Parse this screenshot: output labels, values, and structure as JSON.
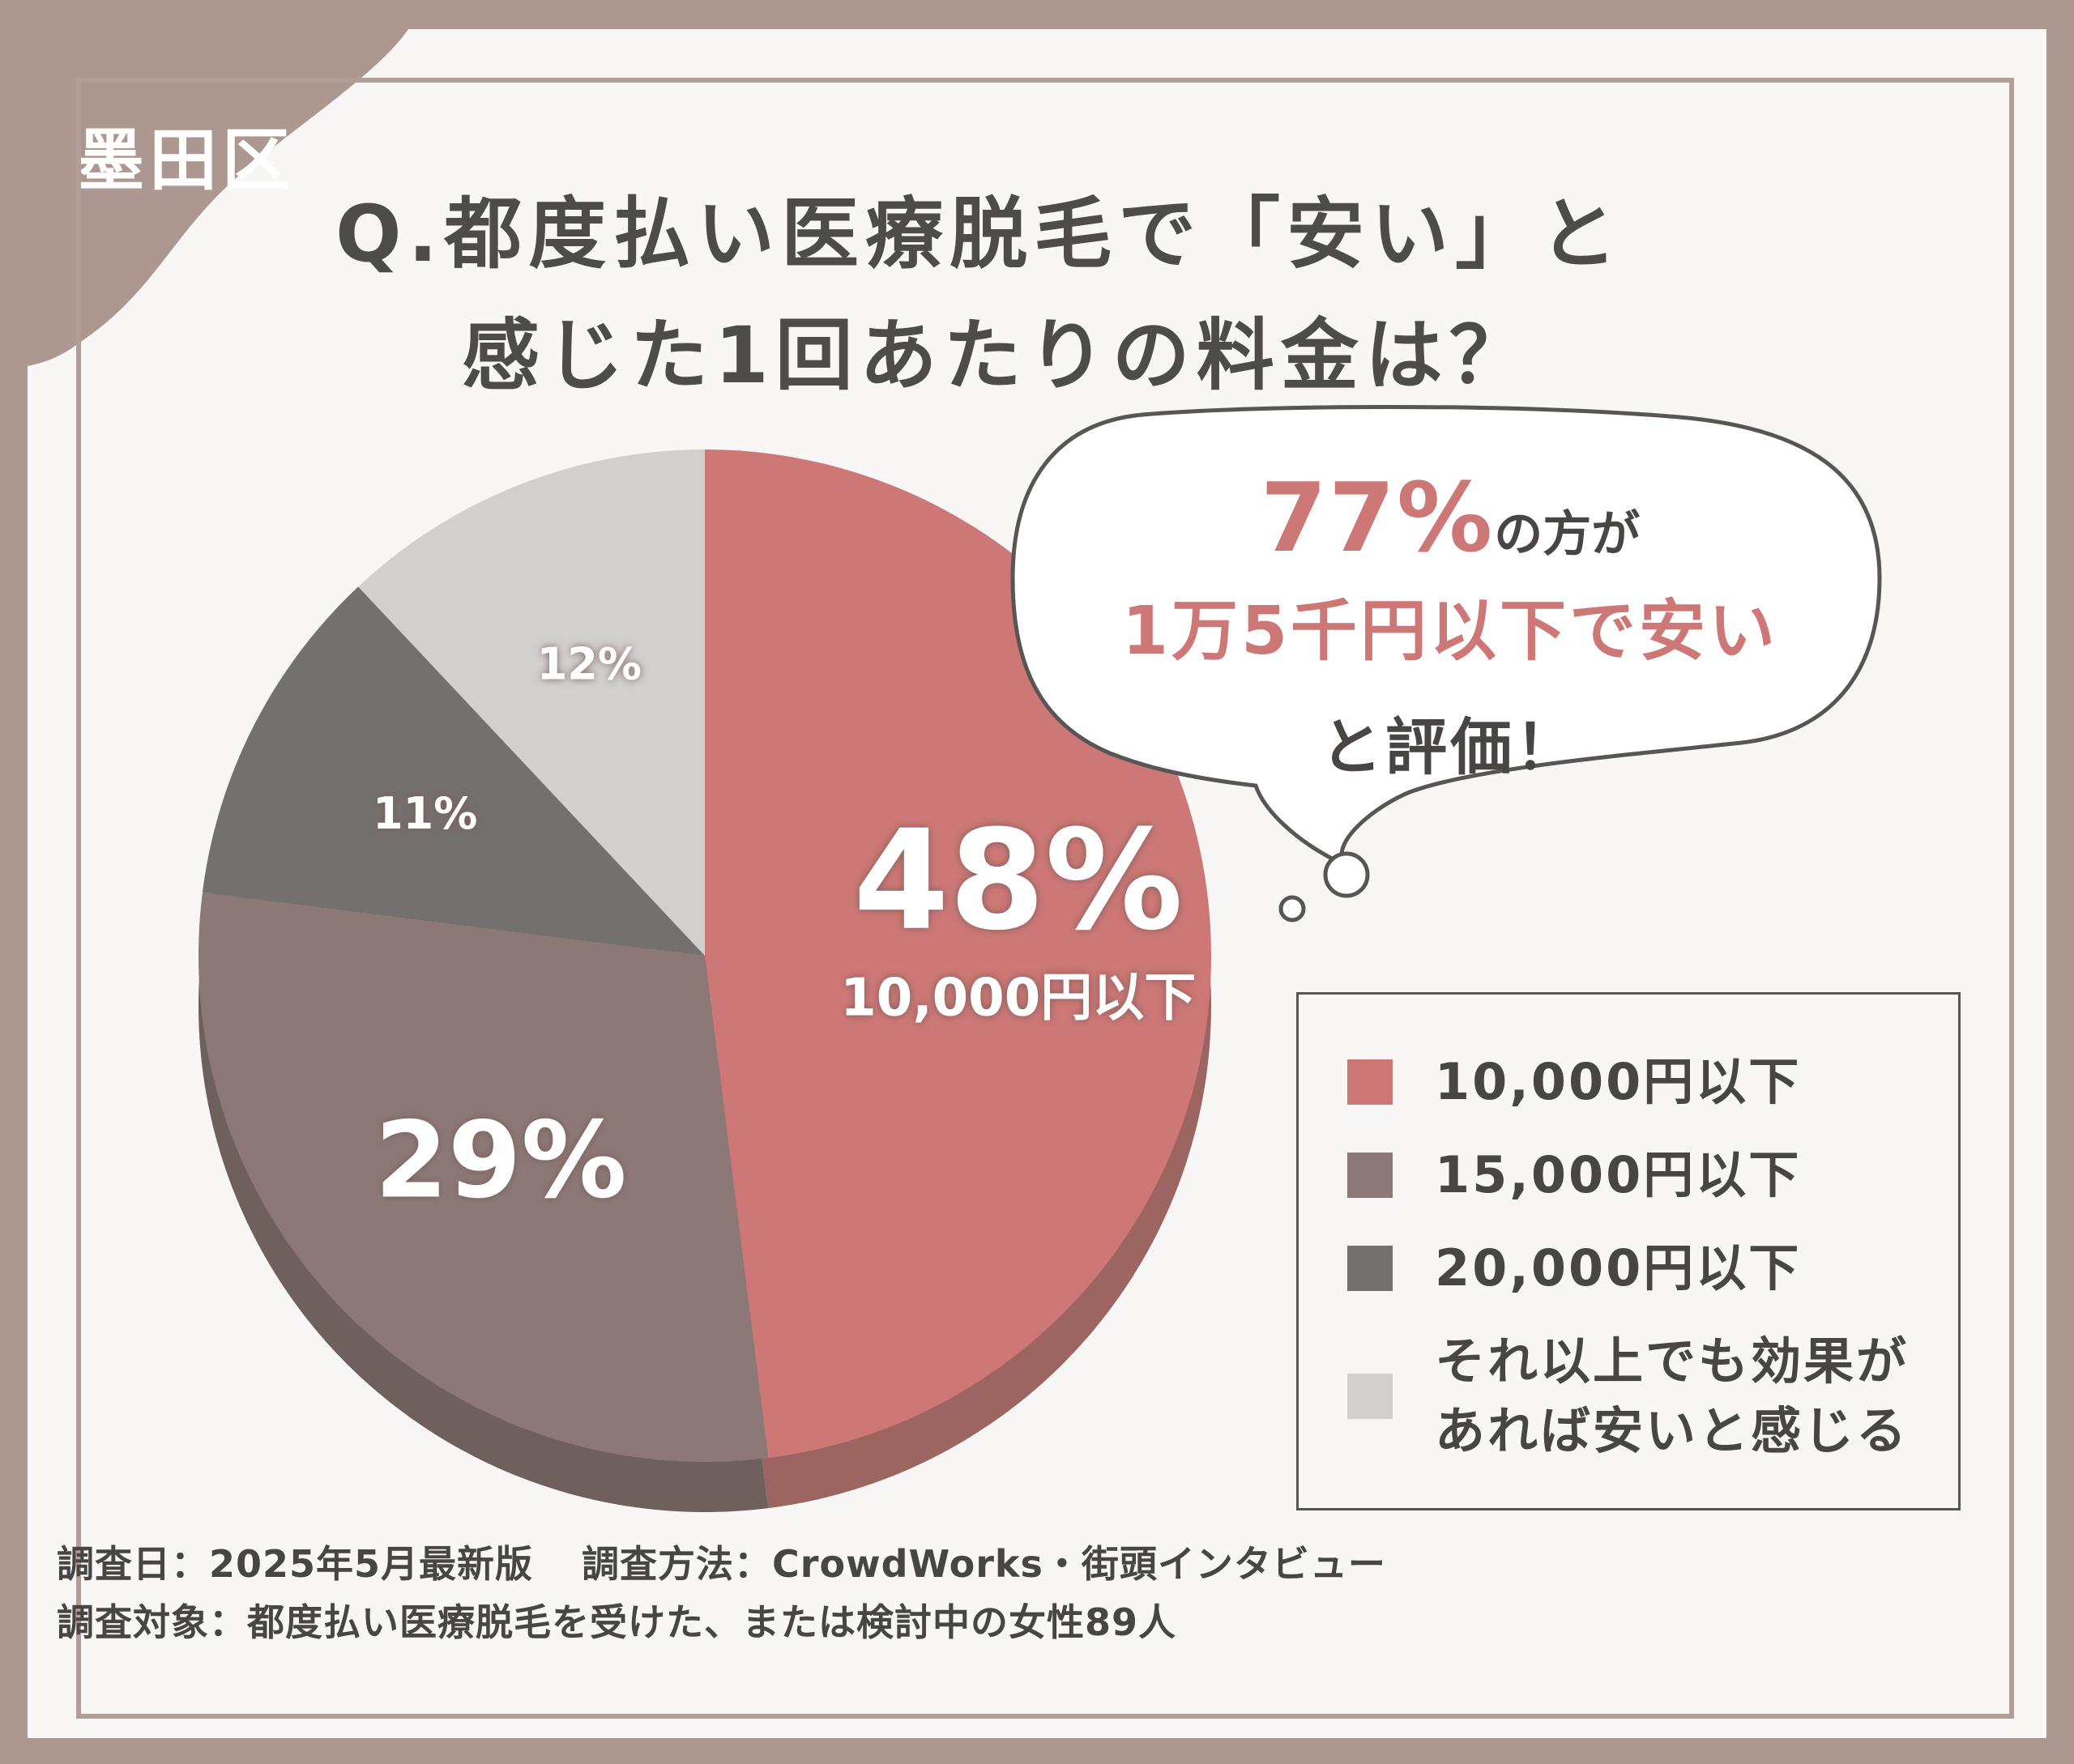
{
  "region_label": "墨田区",
  "title": {
    "line1": "Q.都度払い医療脱毛で「安い」と",
    "line2": "感じた1回あたりの料金は？"
  },
  "bubble": {
    "percent": "77%",
    "percent_suffix": "の方が",
    "line2": "1万5千円以下で安い",
    "line3": "と評価！"
  },
  "chart_data": {
    "type": "pie",
    "title": "",
    "start": "top, clockwise",
    "slices": [
      {
        "name": "10,000円以下",
        "value": 48,
        "label": "48%",
        "sub_label": "10,000円以下",
        "color": "#cd7876",
        "side_color": "#9c6561"
      },
      {
        "name": "15,000円以下",
        "value": 29,
        "label": "29%",
        "sub_label": "",
        "color": "#8c7977",
        "side_color": "#6f605e"
      },
      {
        "name": "20,000円以下",
        "value": 11,
        "label": "11%",
        "sub_label": "",
        "color": "#74706d",
        "side_color": "#5a5654"
      },
      {
        "name": "それ以上でも効果があれば安いと感じる",
        "value": 12,
        "label": "12%",
        "sub_label": "",
        "color": "#d2d0cf",
        "side_color": "#a9a6a5"
      }
    ],
    "legend_placement": "bottom-right"
  },
  "legend": [
    {
      "text": "10,000円以下",
      "color": "#cd7876"
    },
    {
      "text": "15,000円以下",
      "color": "#8c7977"
    },
    {
      "text": "20,000円以下",
      "color": "#74706d"
    },
    {
      "text": "それ以上でも効果が\nあれば安いと感じる",
      "color": "#d2d0cf"
    }
  ],
  "footer": {
    "date": "調査日：2025年5月最新版",
    "method": "調査方法：CrowdWorks・街頭インタビュー",
    "subject": "調査対象：都度払い医療脱毛を受けた、または検討中の女性89人"
  },
  "colors": {
    "frame": "#ad9891",
    "accent": "#cd7876",
    "text": "#4e4b4b",
    "card": "#f8f7f6"
  }
}
